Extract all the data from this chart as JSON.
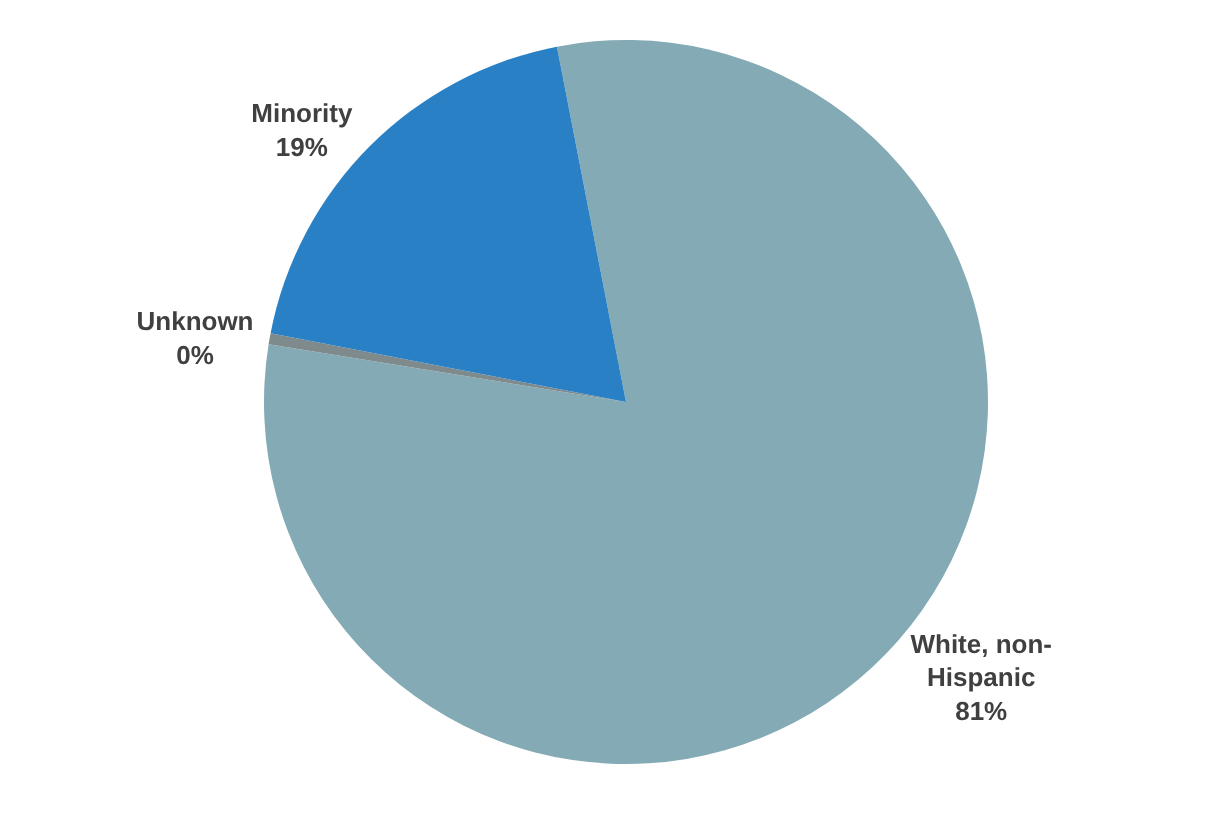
{
  "chart_data": {
    "type": "pie",
    "categories": [
      "White, non-Hispanic",
      "Unknown",
      "Minority"
    ],
    "values": [
      80.6,
      0.5,
      18.9
    ],
    "value_labels": [
      "81%",
      "0%",
      "19%"
    ],
    "colors": [
      "#84abb5",
      "#7f8a8c",
      "#2a80c4"
    ],
    "legend": false
  }
}
